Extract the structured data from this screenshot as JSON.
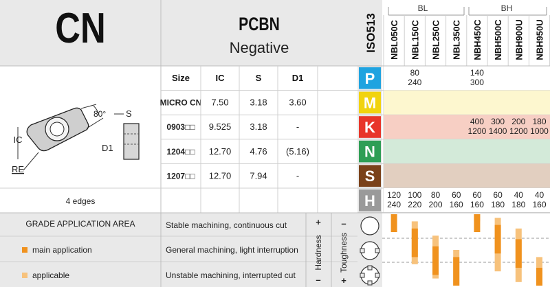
{
  "header": {
    "code": "CN",
    "material": "PCBN",
    "subtitle": "Negative",
    "standard": "ISO513",
    "groups": [
      {
        "label": "BL"
      },
      {
        "label": "BH"
      }
    ],
    "grades": [
      "NBL050C",
      "NBL150C",
      "NBL250C",
      "NBL350C",
      "NBH450C",
      "NBH500C",
      "NBH900U",
      "NBH950U"
    ]
  },
  "size_table": {
    "columns": [
      "Size",
      "IC",
      "S",
      "D1"
    ],
    "rows": [
      {
        "size": "MICRO CN",
        "ic": "7.50",
        "s": "3.18",
        "d1": "3.60"
      },
      {
        "size": "0903□□",
        "ic": "9.525",
        "s": "3.18",
        "d1": "-"
      },
      {
        "size": "1204□□",
        "ic": "12.70",
        "s": "4.76",
        "d1": "(5.16)"
      },
      {
        "size": "1207□□",
        "ic": "12.70",
        "s": "7.94",
        "d1": "-"
      }
    ]
  },
  "drawing": {
    "angle": "80°",
    "ic_label": "IC",
    "re_label": "RE",
    "s_label": "S",
    "d1_label": "D1",
    "edges": "4 edges"
  },
  "iso_groups": [
    {
      "letter": "P",
      "color": "#1fa3e0",
      "band": "#ffffff",
      "cells": [
        "",
        "80\n240",
        "",
        "",
        "140\n300",
        "",
        "",
        ""
      ]
    },
    {
      "letter": "M",
      "color": "#f1d30e",
      "band": "#fdf7cf",
      "cells": [
        "",
        "",
        "",
        "",
        "",
        "",
        "",
        ""
      ]
    },
    {
      "letter": "K",
      "color": "#e8352a",
      "band": "#f7cfc4",
      "cells": [
        "",
        "",
        "",
        "",
        "400\n1200",
        "300\n1400",
        "200\n1200",
        "180\n1000"
      ]
    },
    {
      "letter": "N",
      "color": "#2e9e55",
      "band": "#d3ead9",
      "cells": [
        "",
        "",
        "",
        "",
        "",
        "",
        "",
        ""
      ]
    },
    {
      "letter": "S",
      "color": "#7a4119",
      "band": "#e2cfc0",
      "cells": [
        "",
        "",
        "",
        "",
        "",
        "",
        "",
        ""
      ]
    },
    {
      "letter": "H",
      "color": "#9a9a9a",
      "band": "#ffffff",
      "cells": [
        "120\n240",
        "100\n220",
        "80\n200",
        "60\n160",
        "60\n160",
        "60\n180",
        "40\n180",
        "40\n160"
      ]
    }
  ],
  "application": {
    "title": "GRADE APPLICATION AREA",
    "legend": [
      {
        "label": "main application",
        "color": "#f0921e"
      },
      {
        "label": "applicable",
        "color": "#f7c27c"
      }
    ],
    "conditions": [
      "Stable machining, continuous cut",
      "General machining, light interruption",
      "Unstable machining, interrupted cut"
    ],
    "hardness_label": "Hardness",
    "toughness_label": "Toughness",
    "plus": "+",
    "minus": "–",
    "bars": [
      {
        "light": [
          0.0,
          0.0
        ],
        "main": [
          0.0,
          0.25
        ]
      },
      {
        "light": [
          0.1,
          0.7
        ],
        "main": [
          0.2,
          0.6
        ]
      },
      {
        "light": [
          0.3,
          0.9
        ],
        "main": [
          0.45,
          0.85
        ]
      },
      {
        "light": [
          0.5,
          1.0
        ],
        "main": [
          0.6,
          1.0
        ]
      },
      {
        "light": [
          0.0,
          0.1
        ],
        "main": [
          0.0,
          0.25
        ]
      },
      {
        "light": [
          0.05,
          0.8
        ],
        "main": [
          0.15,
          0.55
        ]
      },
      {
        "light": [
          0.2,
          0.95
        ],
        "main": [
          0.35,
          0.75
        ]
      },
      {
        "light": [
          0.6,
          1.0
        ],
        "main": [
          0.75,
          1.0
        ]
      }
    ]
  }
}
